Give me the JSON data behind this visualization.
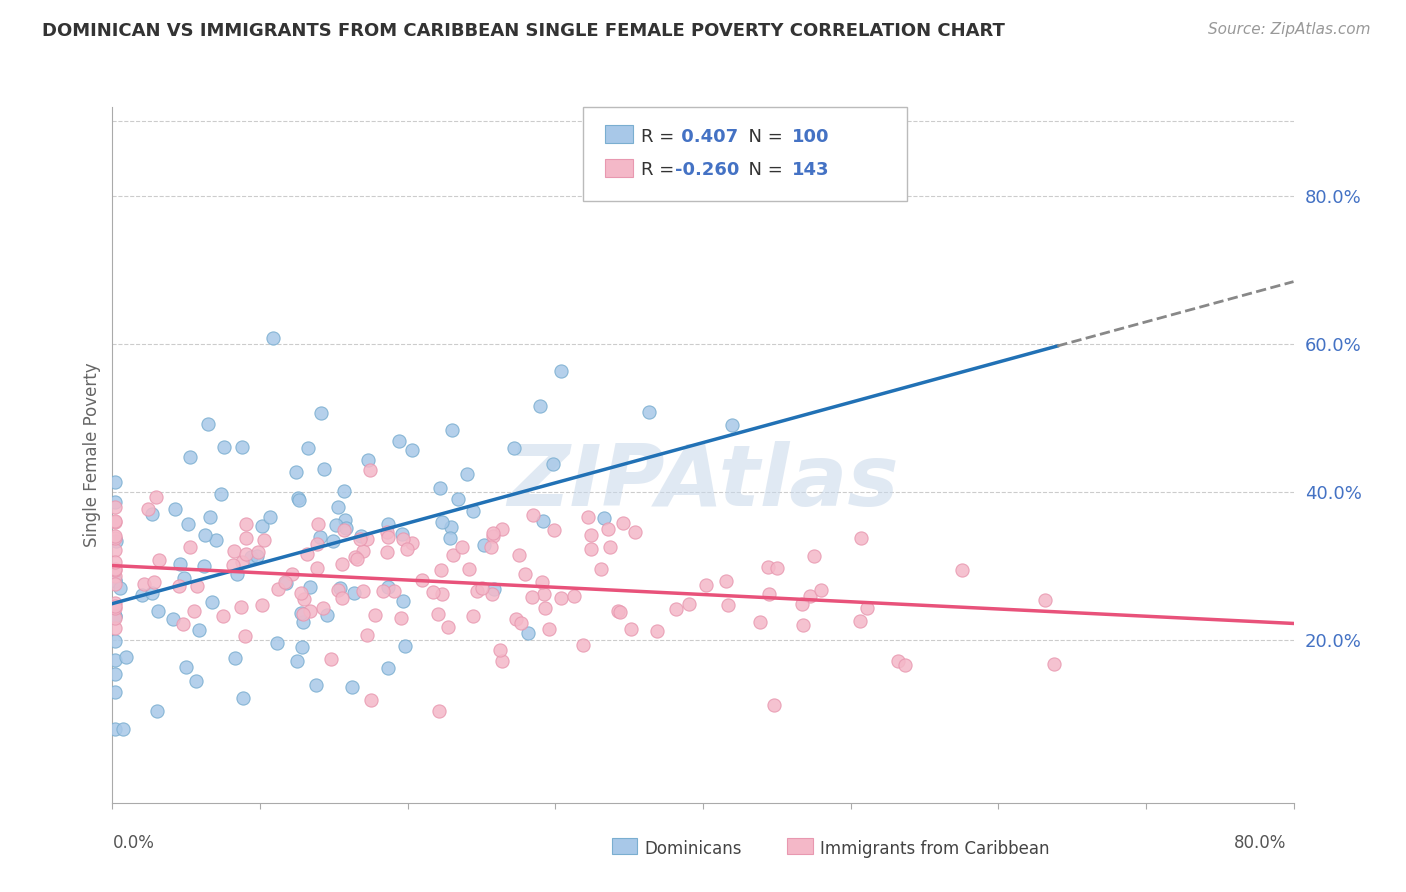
{
  "title": "DOMINICAN VS IMMIGRANTS FROM CARIBBEAN SINGLE FEMALE POVERTY CORRELATION CHART",
  "source": "Source: ZipAtlas.com",
  "ylabel": "Single Female Poverty",
  "xlim": [
    0.0,
    0.8
  ],
  "ylim": [
    -0.02,
    0.92
  ],
  "right_ytick_vals": [
    0.2,
    0.4,
    0.6,
    0.8
  ],
  "right_ytick_labels": [
    "20.0%",
    "40.0%",
    "60.0%",
    "80.0%"
  ],
  "blue_R": 0.407,
  "blue_N": 100,
  "pink_R": -0.26,
  "pink_N": 143,
  "blue_dot_color": "#a8c8e8",
  "pink_dot_color": "#f4b8c8",
  "blue_edge_color": "#7aaed0",
  "pink_edge_color": "#e898b0",
  "blue_line_color": "#2171b5",
  "pink_line_color": "#e8527a",
  "legend_blue_label": "Dominicans",
  "legend_pink_label": "Immigrants from Caribbean",
  "watermark_text": "ZIPAtlas",
  "watermark_color": "#c8d8ea",
  "title_color": "#333333",
  "source_color": "#999999",
  "right_label_color": "#4472c4",
  "grid_color": "#cccccc",
  "background_color": "#ffffff",
  "blue_line_start_x": 0.0,
  "blue_line_solid_end_x": 0.64,
  "blue_line_dashed_end_x": 0.8,
  "pink_line_start_x": 0.0,
  "pink_line_end_x": 0.8
}
